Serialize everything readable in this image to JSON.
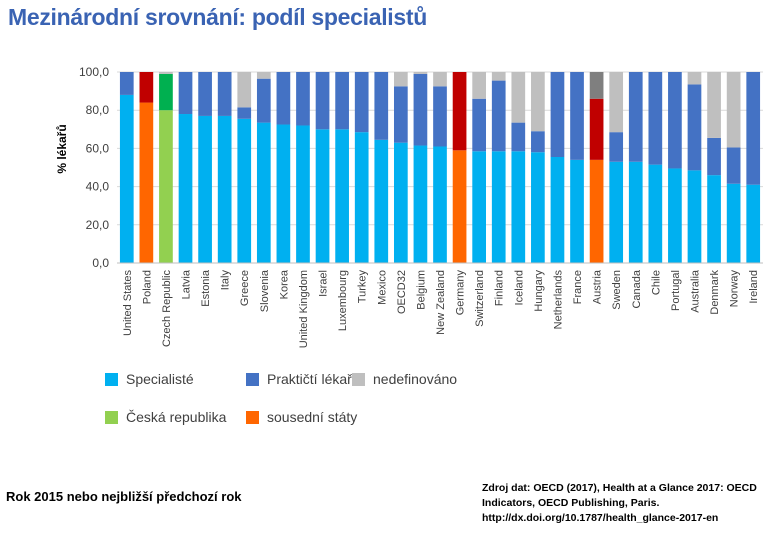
{
  "title": "Mezinárodní srovnání: podíl specialistů",
  "footnote": "Rok 2015 nebo nejbližší předchozí rok",
  "source_lines": [
    "Zdroj dat: OECD (2017), Health at a Glance 2017: OECD",
    "Indicators, OECD Publishing, Paris.",
    "http://dx.doi.org/10.1787/health_glance-2017-en"
  ],
  "legend": [
    {
      "label": "Specialisté",
      "color": "#00b0f0"
    },
    {
      "label": "Praktičtí lékaři",
      "color": "#4472c4"
    },
    {
      "label": "nedefinováno",
      "color": "#bfbfbf"
    },
    {
      "label": "Česká republika",
      "color": "#92d050"
    },
    {
      "label": "sousední státy",
      "color": "#ff6600"
    }
  ],
  "chart_data": {
    "type": "bar",
    "stacked": true,
    "ylabel": "% lékařů",
    "ylim": [
      0,
      100
    ],
    "yticks": [
      "0,0",
      "20,0",
      "40,0",
      "60,0",
      "80,0",
      "100,0"
    ],
    "grid": true,
    "categories": [
      "United States",
      "Poland",
      "Czech Republic",
      "Latvia",
      "Estonia",
      "Italy",
      "Greece",
      "Slovenia",
      "Korea",
      "United Kingdom",
      "Israel",
      "Luxembourg",
      "Turkey",
      "Mexico",
      "OECD32",
      "Belgium",
      "New Zealand",
      "Germany",
      "Switzerland",
      "Finland",
      "Iceland",
      "Hungary",
      "Netherlands",
      "France",
      "Austria",
      "Sweden",
      "Canada",
      "Chile",
      "Portugal",
      "Australia",
      "Denmark",
      "Norway",
      "Ireland"
    ],
    "series": [
      {
        "name": "Specialisté",
        "values": [
          88,
          84,
          80,
          78,
          77,
          77,
          75.5,
          73.5,
          72.5,
          72,
          70,
          70,
          68.5,
          64.5,
          63,
          61.5,
          61,
          59,
          58.5,
          58.5,
          58.5,
          58,
          55.5,
          54,
          54,
          53,
          53,
          51.5,
          49.5,
          48.5,
          46,
          41.5,
          41
        ]
      },
      {
        "name": "Praktičtí lékaři",
        "values": [
          12,
          16,
          19,
          22,
          23,
          23,
          6,
          23,
          27.5,
          28,
          30,
          30,
          31.5,
          35.5,
          29.5,
          37.5,
          31.5,
          41,
          27.5,
          37,
          15,
          11,
          44.5,
          46,
          32,
          15.5,
          47,
          48.5,
          50.5,
          45,
          19.5,
          19,
          59
        ]
      },
      {
        "name": "nedefinováno",
        "values": [
          0,
          0,
          1,
          0,
          0,
          0,
          18.5,
          3.5,
          0,
          0,
          0,
          0,
          0,
          0,
          7.5,
          1,
          7.5,
          0,
          14,
          4.5,
          26.5,
          31,
          0,
          0,
          14,
          31.5,
          0,
          0,
          0,
          6.5,
          34.5,
          39.5,
          0
        ]
      }
    ],
    "highlight": {
      "Czech Republic": [
        "#92d050",
        "#00b050",
        "#bfbfbf"
      ],
      "Poland": [
        "#ff6600",
        "#c00000",
        "#7f7f7f"
      ],
      "Germany": [
        "#ff6600",
        "#c00000",
        "#7f7f7f"
      ],
      "Austria": [
        "#ff6600",
        "#c00000",
        "#7f7f7f"
      ]
    },
    "colors": [
      "#00b0f0",
      "#4472c4",
      "#bfbfbf"
    ]
  }
}
